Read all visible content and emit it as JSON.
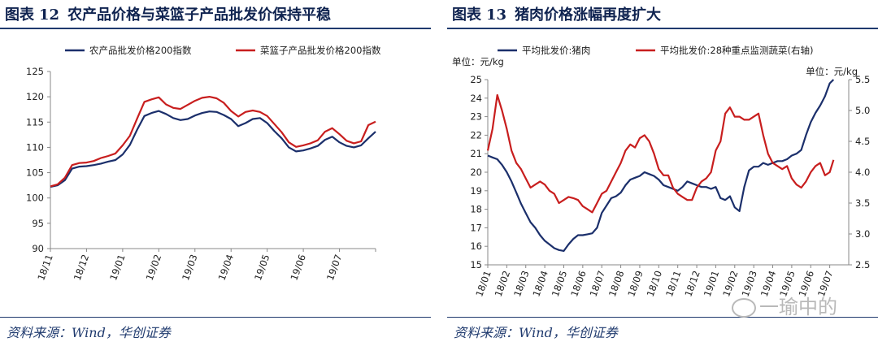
{
  "left": {
    "title_prefix": "图表",
    "title_number": "12",
    "title_text": "农产品价格与菜篮子产品批发价保持平稳",
    "source": "资料来源：Wind，华创证券",
    "colors": {
      "s1": "#1b2f6b",
      "s2": "#c81e1e"
    },
    "chart_data": {
      "type": "line",
      "x_ticks": [
        "18/11",
        "18/12",
        "19/01",
        "19/02",
        "19/03",
        "19/04",
        "19/05",
        "19/06",
        "19/07"
      ],
      "ylim": [
        90,
        125
      ],
      "y_ticks": [
        "90",
        "95",
        "100",
        "105",
        "110",
        "115",
        "120",
        "125"
      ],
      "legend_position": "top",
      "series": [
        {
          "name": "农产品批发价格200指数",
          "x": [
            0,
            0.2,
            0.4,
            0.6,
            0.8,
            1.0,
            1.2,
            1.4,
            1.6,
            1.8,
            2.0,
            2.2,
            2.4,
            2.6,
            2.8,
            3.0,
            3.2,
            3.4,
            3.6,
            3.8,
            4.0,
            4.2,
            4.4,
            4.6,
            4.8,
            5.0,
            5.2,
            5.4,
            5.6,
            5.8,
            6.0,
            6.2,
            6.4,
            6.6,
            6.8,
            7.0,
            7.2,
            7.4,
            7.6,
            7.8,
            8.0,
            8.2,
            8.4,
            8.6,
            8.8,
            9.0
          ],
          "values": [
            102.2,
            102.5,
            103.5,
            105.8,
            106.2,
            106.3,
            106.5,
            106.8,
            107.2,
            107.5,
            108.6,
            110.5,
            113.5,
            116.2,
            116.8,
            117.2,
            116.6,
            115.8,
            115.4,
            115.6,
            116.3,
            116.8,
            117.1,
            117.0,
            116.4,
            115.6,
            114.2,
            114.8,
            115.6,
            115.8,
            114.8,
            113.2,
            111.8,
            110.0,
            109.2,
            109.4,
            109.8,
            110.3,
            111.5,
            112.1,
            111.0,
            110.3,
            110.0,
            110.4,
            111.8,
            113.1
          ]
        },
        {
          "name": "菜篮子产品批发价格200指数",
          "x": [
            0,
            0.2,
            0.4,
            0.6,
            0.8,
            1.0,
            1.2,
            1.4,
            1.6,
            1.8,
            2.0,
            2.2,
            2.4,
            2.6,
            2.8,
            3.0,
            3.2,
            3.4,
            3.6,
            3.8,
            4.0,
            4.2,
            4.4,
            4.6,
            4.8,
            5.0,
            5.2,
            5.4,
            5.6,
            5.8,
            6.0,
            6.2,
            6.4,
            6.6,
            6.8,
            7.0,
            7.2,
            7.4,
            7.6,
            7.8,
            8.0,
            8.2,
            8.4,
            8.6,
            8.8,
            9.0
          ],
          "values": [
            102.3,
            102.7,
            104.0,
            106.5,
            106.9,
            107.0,
            107.3,
            107.9,
            108.3,
            108.8,
            110.4,
            112.3,
            115.7,
            119.0,
            119.5,
            119.9,
            118.5,
            117.8,
            117.6,
            118.4,
            119.2,
            119.8,
            120.0,
            119.7,
            118.8,
            117.2,
            116.1,
            117.0,
            117.3,
            117.0,
            116.2,
            114.6,
            113.0,
            111.0,
            110.1,
            110.4,
            110.8,
            111.4,
            113.1,
            113.8,
            112.6,
            111.3,
            110.8,
            111.2,
            114.4,
            115.1
          ]
        }
      ]
    }
  },
  "right": {
    "title_prefix": "图表",
    "title_number": "13",
    "title_text": "猪肉价格涨幅再度扩大",
    "source": "资料来源：Wind，华创证券",
    "colors": {
      "s1": "#1b2f6b",
      "s2": "#c81e1e"
    },
    "chart_data": {
      "type": "line",
      "x_ticks": [
        "18/01",
        "18/02",
        "18/03",
        "18/04",
        "18/05",
        "18/06",
        "18/07",
        "18/08",
        "18/09",
        "18/10",
        "18/11",
        "18/12",
        "19/01",
        "19/02",
        "19/03",
        "19/04",
        "19/05",
        "19/06",
        "19/07"
      ],
      "left_unit": "单位：元/kg",
      "right_unit": "单位：元/kg",
      "ylim_left": [
        15,
        25
      ],
      "y_ticks_left": [
        "15",
        "16",
        "17",
        "18",
        "19",
        "20",
        "21",
        "22",
        "23",
        "24",
        "25"
      ],
      "ylim_right": [
        2.5,
        5.5
      ],
      "y_ticks_right": [
        "2.5",
        "3.0",
        "3.5",
        "4.0",
        "4.5",
        "5.0",
        "5.5"
      ],
      "legend_position": "top",
      "series": [
        {
          "name": "平均批发价:猪肉",
          "axis": "left",
          "x": [
            0,
            0.25,
            0.5,
            0.75,
            1.0,
            1.25,
            1.5,
            1.75,
            2.0,
            2.25,
            2.5,
            2.75,
            3.0,
            3.25,
            3.5,
            3.75,
            4.0,
            4.25,
            4.5,
            4.75,
            5.0,
            5.25,
            5.5,
            5.75,
            6.0,
            6.25,
            6.5,
            6.75,
            7.0,
            7.25,
            7.5,
            7.75,
            8.0,
            8.25,
            8.5,
            8.75,
            9.0,
            9.25,
            9.5,
            9.75,
            10.0,
            10.25,
            10.5,
            10.75,
            11.0,
            11.25,
            11.5,
            11.75,
            12.0,
            12.25,
            12.5,
            12.75,
            13.0,
            13.25,
            13.5,
            13.75,
            14.0,
            14.25,
            14.5,
            14.75,
            15.0,
            15.25,
            15.5,
            15.75,
            16.0,
            16.25,
            16.5,
            16.75,
            17.0,
            17.25,
            17.5,
            17.75,
            18.0,
            18.2
          ],
          "values": [
            20.9,
            20.8,
            20.7,
            20.4,
            20.0,
            19.5,
            18.9,
            18.3,
            17.8,
            17.3,
            17.0,
            16.6,
            16.3,
            16.1,
            15.9,
            15.8,
            15.75,
            16.1,
            16.4,
            16.6,
            16.6,
            16.65,
            16.7,
            17.0,
            17.8,
            18.2,
            18.6,
            18.7,
            18.9,
            19.3,
            19.6,
            19.7,
            19.8,
            20.0,
            19.9,
            19.8,
            19.6,
            19.3,
            19.2,
            19.1,
            19.0,
            19.2,
            19.5,
            19.4,
            19.3,
            19.2,
            19.2,
            19.1,
            19.2,
            18.6,
            18.5,
            18.7,
            18.1,
            17.9,
            19.2,
            20.1,
            20.3,
            20.3,
            20.5,
            20.4,
            20.5,
            20.6,
            20.6,
            20.7,
            20.9,
            21.0,
            21.2,
            22.0,
            22.7,
            23.2,
            23.6,
            24.1,
            24.8,
            25.0
          ]
        },
        {
          "name": "平均批发价:28种重点监测蔬菜(右轴)",
          "axis": "right",
          "x": [
            0,
            0.25,
            0.5,
            0.75,
            1.0,
            1.25,
            1.5,
            1.75,
            2.0,
            2.25,
            2.5,
            2.75,
            3.0,
            3.25,
            3.5,
            3.75,
            4.0,
            4.25,
            4.5,
            4.75,
            5.0,
            5.25,
            5.5,
            5.75,
            6.0,
            6.25,
            6.5,
            6.75,
            7.0,
            7.25,
            7.5,
            7.75,
            8.0,
            8.25,
            8.5,
            8.75,
            9.0,
            9.25,
            9.5,
            9.75,
            10.0,
            10.25,
            10.5,
            10.75,
            11.0,
            11.25,
            11.5,
            11.75,
            12.0,
            12.25,
            12.5,
            12.75,
            13.0,
            13.25,
            13.5,
            13.75,
            14.0,
            14.25,
            14.5,
            14.75,
            15.0,
            15.25,
            15.5,
            15.75,
            16.0,
            16.25,
            16.5,
            16.75,
            17.0,
            17.25,
            17.5,
            17.75,
            18.0,
            18.2
          ],
          "values": [
            4.35,
            4.7,
            5.25,
            5.0,
            4.7,
            4.35,
            4.15,
            4.05,
            3.9,
            3.75,
            3.8,
            3.85,
            3.8,
            3.7,
            3.65,
            3.5,
            3.55,
            3.6,
            3.58,
            3.55,
            3.45,
            3.4,
            3.35,
            3.5,
            3.65,
            3.7,
            3.85,
            4.0,
            4.15,
            4.35,
            4.45,
            4.4,
            4.55,
            4.6,
            4.5,
            4.3,
            4.05,
            3.95,
            3.95,
            3.75,
            3.65,
            3.6,
            3.55,
            3.55,
            3.75,
            3.85,
            3.9,
            4.0,
            4.35,
            4.5,
            4.95,
            5.05,
            4.9,
            4.9,
            4.85,
            4.85,
            4.9,
            4.95,
            4.6,
            4.3,
            4.15,
            4.1,
            4.05,
            4.1,
            3.9,
            3.8,
            3.75,
            3.85,
            4.0,
            4.1,
            4.15,
            3.95,
            4.0,
            4.2
          ]
        }
      ]
    }
  },
  "watermark": "一瑜中的"
}
